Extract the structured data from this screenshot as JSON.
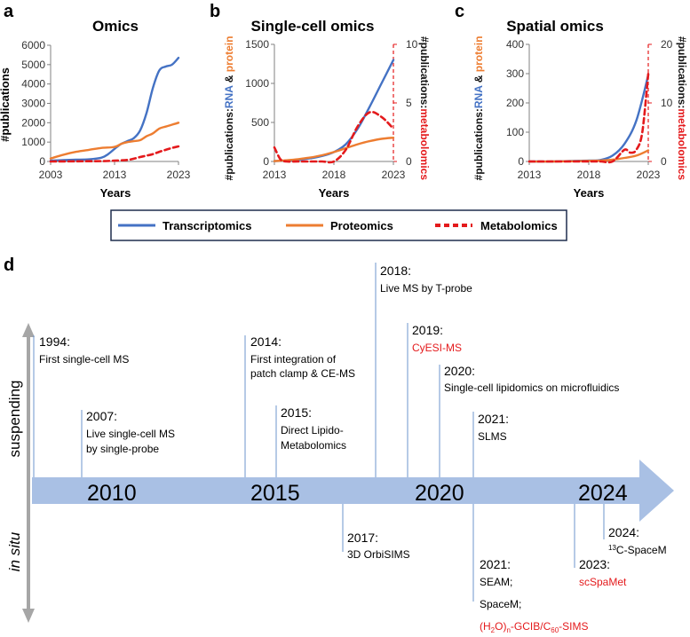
{
  "colors": {
    "transcriptomics": "#4472C4",
    "proteomics": "#ED7D31",
    "metabolomics": "#E41A1C",
    "timeline_arrow": "#A9C0E4",
    "timeline_ticks": "#6E95CC",
    "red_text": "#E41A1C",
    "axis": "#808080",
    "side_arrow": "#A6A6A6"
  },
  "panel_labels": {
    "a": "a",
    "b": "b",
    "c": "c",
    "d": "d"
  },
  "shared": {
    "xlabel": "Years",
    "ylabel_omics": "#publications",
    "ylabel_left_prefix": "#publications:",
    "ylabel_left_rna": "RNA",
    "ylabel_left_amp": " & ",
    "ylabel_left_protein": "protein",
    "ylabel_right_prefix": "#publications:",
    "ylabel_right_metab": "metabolomics"
  },
  "legend": {
    "items": [
      {
        "label": "Transcriptomics",
        "icon": "solid-line-icon"
      },
      {
        "label": "Proteomics",
        "icon": "solid-line-icon"
      },
      {
        "label": "Metabolomics",
        "icon": "dashed-line-icon"
      }
    ]
  },
  "chart_data": [
    {
      "id": "a",
      "type": "line",
      "title": "Omics",
      "xlabel": "Years",
      "ylabel": "#publications",
      "xlim": [
        2003,
        2023
      ],
      "ylim": [
        0,
        6000
      ],
      "xticks": [
        2003,
        2013,
        2023
      ],
      "yticks": [
        0,
        1000,
        2000,
        3000,
        4000,
        5000,
        6000
      ],
      "series": [
        {
          "name": "Transcriptomics",
          "axis": "left",
          "x": [
            2003,
            2005,
            2007,
            2009,
            2011,
            2012,
            2013,
            2014,
            2015,
            2016,
            2017,
            2018,
            2019,
            2020,
            2021,
            2022,
            2023
          ],
          "y": [
            40,
            70,
            90,
            110,
            200,
            380,
            650,
            900,
            1050,
            1200,
            1600,
            2500,
            3800,
            4700,
            4900,
            5000,
            5350
          ]
        },
        {
          "name": "Proteomics",
          "axis": "left",
          "x": [
            2003,
            2005,
            2007,
            2009,
            2011,
            2013,
            2014,
            2015,
            2016,
            2017,
            2018,
            2019,
            2020,
            2021,
            2022,
            2023
          ],
          "y": [
            150,
            350,
            500,
            600,
            700,
            750,
            900,
            1000,
            1050,
            1100,
            1300,
            1450,
            1700,
            1800,
            1900,
            2000
          ]
        },
        {
          "name": "Metabolomics",
          "axis": "left",
          "x": [
            2003,
            2007,
            2011,
            2013,
            2015,
            2016,
            2017,
            2018,
            2019,
            2020,
            2021,
            2022,
            2023
          ],
          "y": [
            0,
            10,
            20,
            40,
            80,
            140,
            230,
            300,
            380,
            500,
            600,
            700,
            780
          ]
        }
      ]
    },
    {
      "id": "b",
      "type": "line",
      "title": "Single-cell omics",
      "xlabel": "Years",
      "xlim": [
        2013,
        2023
      ],
      "ylim": [
        0,
        1500
      ],
      "y2lim": [
        0,
        10
      ],
      "xticks": [
        2013,
        2018,
        2023
      ],
      "yticks": [
        0,
        500,
        1000,
        1500
      ],
      "y2ticks": [
        0,
        5,
        10
      ],
      "series": [
        {
          "name": "Transcriptomics",
          "axis": "left",
          "x": [
            2013,
            2014,
            2015,
            2016,
            2017,
            2018,
            2019,
            2020,
            2021,
            2022,
            2023
          ],
          "y": [
            5,
            10,
            20,
            40,
            70,
            120,
            220,
            420,
            700,
            1000,
            1300
          ]
        },
        {
          "name": "Proteomics",
          "axis": "left",
          "x": [
            2013,
            2014,
            2015,
            2016,
            2017,
            2018,
            2019,
            2020,
            2021,
            2022,
            2023
          ],
          "y": [
            5,
            15,
            30,
            50,
            80,
            120,
            170,
            220,
            260,
            290,
            305
          ]
        },
        {
          "name": "Metabolomics",
          "axis": "right",
          "x": [
            2013,
            2013.5,
            2014,
            2015,
            2016,
            2017,
            2018,
            2019,
            2020,
            2021,
            2022,
            2023
          ],
          "y": [
            1.2,
            0.2,
            0,
            0,
            0,
            0,
            0,
            1,
            3,
            4.2,
            3.8,
            2.8
          ]
        }
      ]
    },
    {
      "id": "c",
      "type": "line",
      "title": "Spatial omics",
      "xlabel": "Years",
      "xlim": [
        2013,
        2023
      ],
      "ylim": [
        0,
        400
      ],
      "y2lim": [
        0,
        20
      ],
      "xticks": [
        2013,
        2018,
        2023
      ],
      "yticks": [
        0,
        100,
        200,
        300,
        400
      ],
      "y2ticks": [
        0,
        10,
        20
      ],
      "series": [
        {
          "name": "Transcriptomics",
          "axis": "left",
          "x": [
            2013,
            2014,
            2015,
            2016,
            2017,
            2018,
            2019,
            2020,
            2021,
            2022,
            2023
          ],
          "y": [
            0,
            0,
            0,
            1,
            2,
            3,
            5,
            20,
            60,
            140,
            295
          ]
        },
        {
          "name": "Proteomics",
          "axis": "left",
          "x": [
            2013,
            2015,
            2017,
            2018,
            2019,
            2020,
            2021,
            2022,
            2023
          ],
          "y": [
            0,
            0,
            1,
            2,
            3,
            6,
            12,
            20,
            38
          ]
        },
        {
          "name": "Metabolomics",
          "axis": "right",
          "x": [
            2013,
            2015,
            2017,
            2018,
            2019,
            2020,
            2021,
            2021.5,
            2022,
            2022.5,
            2023
          ],
          "y": [
            0,
            0,
            0,
            0,
            0,
            0,
            2,
            1.5,
            2,
            5,
            15
          ]
        }
      ]
    }
  ],
  "timeline": {
    "side_top": "suspending",
    "side_bottom": "in situ",
    "years": [
      "2010",
      "2015",
      "2020",
      "2024"
    ],
    "above": [
      {
        "year": "1994:",
        "lines": [
          "First single-cell MS"
        ],
        "red": []
      },
      {
        "year": "2007:",
        "lines": [
          "Live single-cell MS",
          "by single-probe"
        ],
        "red": []
      },
      {
        "year": "2014:",
        "lines": [
          "First integration of",
          "patch clamp & CE-MS"
        ],
        "red": []
      },
      {
        "year": "2015:",
        "lines": [
          "Direct Lipido-",
          "Metabolomics"
        ],
        "red": []
      },
      {
        "year": "2018:",
        "lines": [
          "Live MS by T-probe"
        ],
        "red": []
      },
      {
        "year": "2019:",
        "lines": [],
        "red": [
          "CyESI-MS"
        ]
      },
      {
        "year": "2020:",
        "lines": [
          "Single-cell lipidomics on microfluidics"
        ],
        "red": []
      },
      {
        "year": "2021:",
        "lines": [
          "SLMS"
        ],
        "red": []
      }
    ],
    "below": [
      {
        "year": "2017:",
        "lines": [
          "3D OrbiSIMS"
        ],
        "red": []
      },
      {
        "year": "2021:",
        "lines": [
          "SEAM;",
          "SpaceM;"
        ],
        "red": [
          "(H2O)n-GCIB/C60-SIMS"
        ]
      },
      {
        "year": "2023:",
        "lines": [],
        "red": [
          "scSpaMet"
        ]
      },
      {
        "year": "2024:",
        "lines": [
          "13C-SpaceM"
        ],
        "red": []
      }
    ]
  }
}
